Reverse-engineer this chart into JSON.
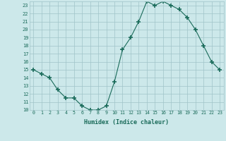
{
  "xlabel": "Humidex (Indice chaleur)",
  "x_values": [
    0,
    1,
    2,
    3,
    4,
    5,
    6,
    7,
    8,
    9,
    10,
    11,
    12,
    13,
    14,
    15,
    16,
    17,
    18,
    19,
    20,
    21,
    22,
    23
  ],
  "y_values": [
    15,
    14.5,
    14,
    12.5,
    11.5,
    11.5,
    10.5,
    10,
    10,
    10.5,
    13.5,
    17.5,
    19,
    21,
    23.5,
    23,
    23.5,
    23,
    22.5,
    21.5,
    20,
    18,
    16,
    15
  ],
  "line_color": "#1a6b5a",
  "marker": "+",
  "marker_size": 4,
  "bg_color": "#cce8ea",
  "grid_color": "#a0c4c8",
  "tick_label_color": "#1a6b5a",
  "axis_label_color": "#1a6b5a",
  "ylim": [
    10,
    23.5
  ],
  "yticks": [
    10,
    11,
    12,
    13,
    14,
    15,
    16,
    17,
    18,
    19,
    20,
    21,
    22,
    23
  ],
  "xlim": [
    -0.5,
    23.5
  ],
  "xticks": [
    0,
    1,
    2,
    3,
    4,
    5,
    6,
    7,
    8,
    9,
    10,
    11,
    12,
    13,
    14,
    15,
    16,
    17,
    18,
    19,
    20,
    21,
    22,
    23
  ],
  "xtick_labels": [
    "0",
    "1",
    "2",
    "3",
    "4",
    "5",
    "6",
    "7",
    "8",
    "9",
    "10",
    "11",
    "12",
    "13",
    "14",
    "15",
    "16",
    "17",
    "18",
    "19",
    "20",
    "21",
    "22",
    "23"
  ],
  "ytick_labels": [
    "10",
    "11",
    "12",
    "13",
    "14",
    "15",
    "16",
    "17",
    "18",
    "19",
    "20",
    "21",
    "22",
    "23"
  ]
}
